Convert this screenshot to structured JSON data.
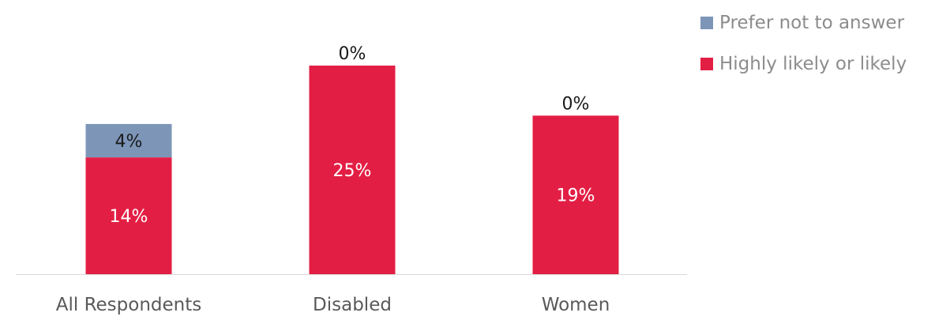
{
  "chart_data": {
    "type": "bar",
    "stacked": true,
    "categories": [
      "All Respondents",
      "Disabled",
      "Women"
    ],
    "series": [
      {
        "name": "Highly likely or likely",
        "values": [
          14,
          25,
          19
        ],
        "labels": [
          "14%",
          "25%",
          "19%"
        ],
        "color": "#e31e44"
      },
      {
        "name": "Prefer not to answer",
        "values": [
          4,
          0,
          0
        ],
        "labels": [
          "4%",
          "0%",
          "0%"
        ],
        "color": "#7d96b8"
      }
    ],
    "ylim": [
      0,
      25
    ],
    "legend_position": "top-right",
    "grid": false
  },
  "legend": {
    "items": [
      {
        "label": "Prefer not to answer",
        "color": "#7d96b8"
      },
      {
        "label": "Highly likely or likely",
        "color": "#e31e44"
      }
    ]
  }
}
